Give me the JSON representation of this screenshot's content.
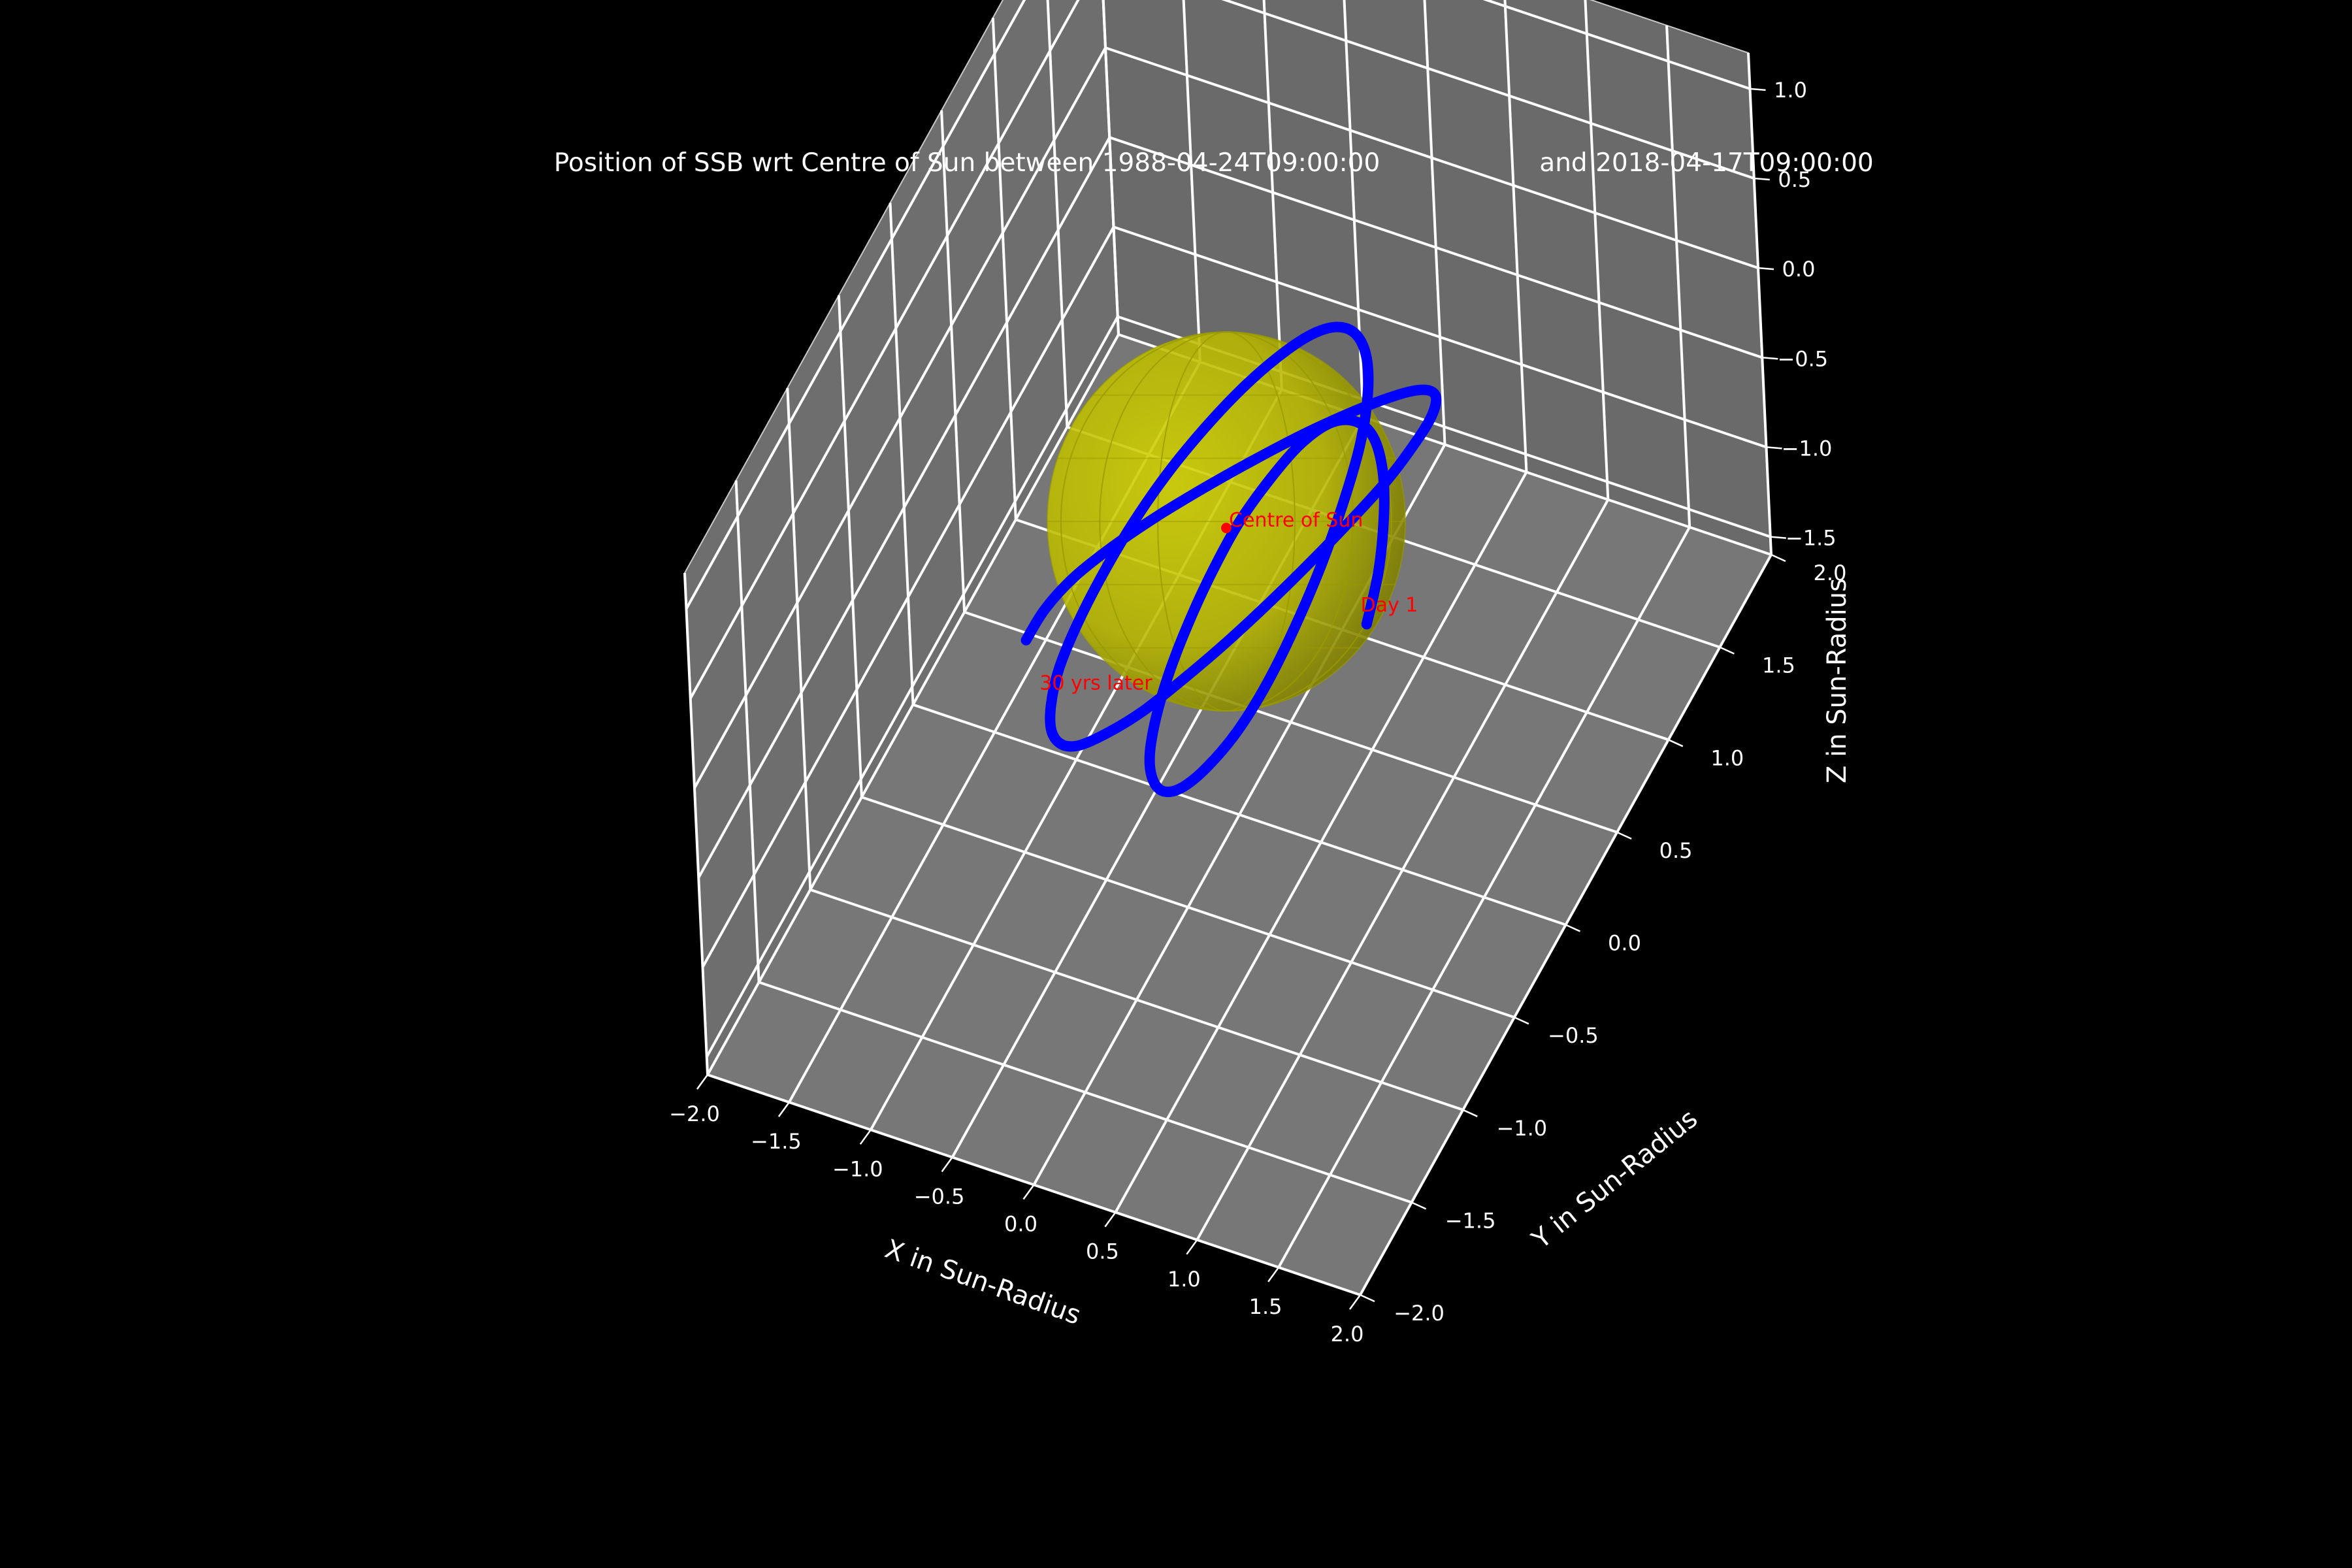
{
  "chart_data": {
    "type": "line3d",
    "title_left": "Position of SSB wrt Centre of Sun between 1988-04-24T09:00:00",
    "title_right": "and 2018-04-17T09:00:00",
    "xlabel": "X in Sun-Radius",
    "ylabel": "Y in Sun-Radius",
    "zlabel": "Z in Sun-Radius",
    "xlim": [
      -2.0,
      2.0
    ],
    "ylim": [
      -2.0,
      2.0
    ],
    "zlim": [
      -1.6,
      1.2
    ],
    "grid": true,
    "background": "#000000",
    "pane_color": "#777777",
    "x_ticks": [
      "−2.0",
      "−1.5",
      "−1.0",
      "−0.5",
      "0.0",
      "0.5",
      "1.0",
      "1.5",
      "2.0"
    ],
    "y_ticks": [
      "−2.0",
      "−1.5",
      "−1.0",
      "−0.5",
      "0.0",
      "0.5",
      "1.0",
      "1.5",
      "2.0"
    ],
    "z_ticks": [
      "−1.5",
      "−1.0",
      "−0.5",
      "0.0",
      "0.5",
      "1.0"
    ],
    "sun": {
      "center": [
        0,
        0,
        0
      ],
      "radius": 1.0,
      "color": "#b8b800"
    },
    "centre_point": {
      "xyz": [
        0,
        0,
        0
      ],
      "label": "Centre of Sun",
      "color": "#ff0000"
    },
    "start_label": {
      "xyz": [
        0.5,
        0.5,
        -0.8
      ],
      "text": "Day 1",
      "color": "#ff0000"
    },
    "end_label": {
      "xyz": [
        -1.0,
        -0.3,
        -0.9
      ],
      "text": "30 yrs later",
      "color": "#ff0000"
    },
    "series": [
      {
        "color": "#0000ff",
        "x": [
          0.5,
          0.52,
          0.5,
          0.45,
          0.36,
          0.24,
          0.1,
          -0.05,
          -0.18,
          -0.3,
          -0.38,
          -0.42,
          -0.42,
          -0.38,
          -0.3,
          -0.18,
          -0.03,
          0.14,
          0.32,
          0.5,
          0.65,
          0.76,
          0.83,
          0.85,
          0.82,
          0.73,
          0.59,
          0.4,
          0.18,
          -0.06,
          -0.31,
          -0.55,
          -0.77,
          -0.95,
          -1.08,
          -1.15,
          -1.16,
          -1.11,
          -0.99,
          -0.82,
          -0.6,
          -0.35,
          -0.07,
          0.22,
          0.5,
          0.76,
          0.99,
          1.17,
          1.29,
          1.35,
          1.33,
          1.24,
          1.08,
          0.86,
          0.6,
          0.31,
          0.0,
          -0.31,
          -0.6,
          -0.85,
          -1.05,
          -1.18,
          -1.24,
          -1.22,
          -1.14
        ],
        "y": [
          0.5,
          0.6,
          0.7,
          0.78,
          0.84,
          0.86,
          0.84,
          0.78,
          0.68,
          0.55,
          0.39,
          0.21,
          0.02,
          -0.17,
          -0.35,
          -0.5,
          -0.62,
          -0.7,
          -0.73,
          -0.71,
          -0.64,
          -0.52,
          -0.36,
          -0.17,
          0.05,
          0.27,
          0.48,
          0.67,
          0.82,
          0.93,
          0.99,
          1.0,
          0.96,
          0.86,
          0.71,
          0.52,
          0.29,
          0.04,
          -0.22,
          -0.47,
          -0.7,
          -0.9,
          -1.05,
          -1.15,
          -1.19,
          -1.17,
          -1.08,
          -0.93,
          -0.73,
          -0.48,
          -0.2,
          0.09,
          0.38,
          0.64,
          0.86,
          1.03,
          1.14,
          1.18,
          1.15,
          1.05,
          0.89,
          0.67,
          0.4,
          0.1,
          -0.2
        ],
        "z": [
          -0.9,
          -0.7,
          -0.5,
          -0.35,
          -0.25,
          -0.22,
          -0.25,
          -0.35,
          -0.48,
          -0.63,
          -0.78,
          -0.9,
          -0.98,
          -1.02,
          -1.01,
          -0.95,
          -0.84,
          -0.68,
          -0.48,
          -0.25,
          -0.01,
          0.22,
          0.42,
          0.57,
          0.66,
          0.68,
          0.63,
          0.51,
          0.33,
          0.1,
          -0.16,
          -0.42,
          -0.67,
          -0.88,
          -1.05,
          -1.16,
          -1.2,
          -1.17,
          -1.07,
          -0.9,
          -0.67,
          -0.39,
          -0.08,
          0.23,
          0.53,
          0.79,
          1.0,
          1.14,
          1.2,
          1.18,
          1.08,
          0.9,
          0.66,
          0.37,
          0.06,
          -0.25,
          -0.54,
          -0.79,
          -0.99,
          -1.12,
          -1.18,
          -1.16,
          -1.07,
          -0.93,
          -0.77
        ]
      }
    ]
  }
}
